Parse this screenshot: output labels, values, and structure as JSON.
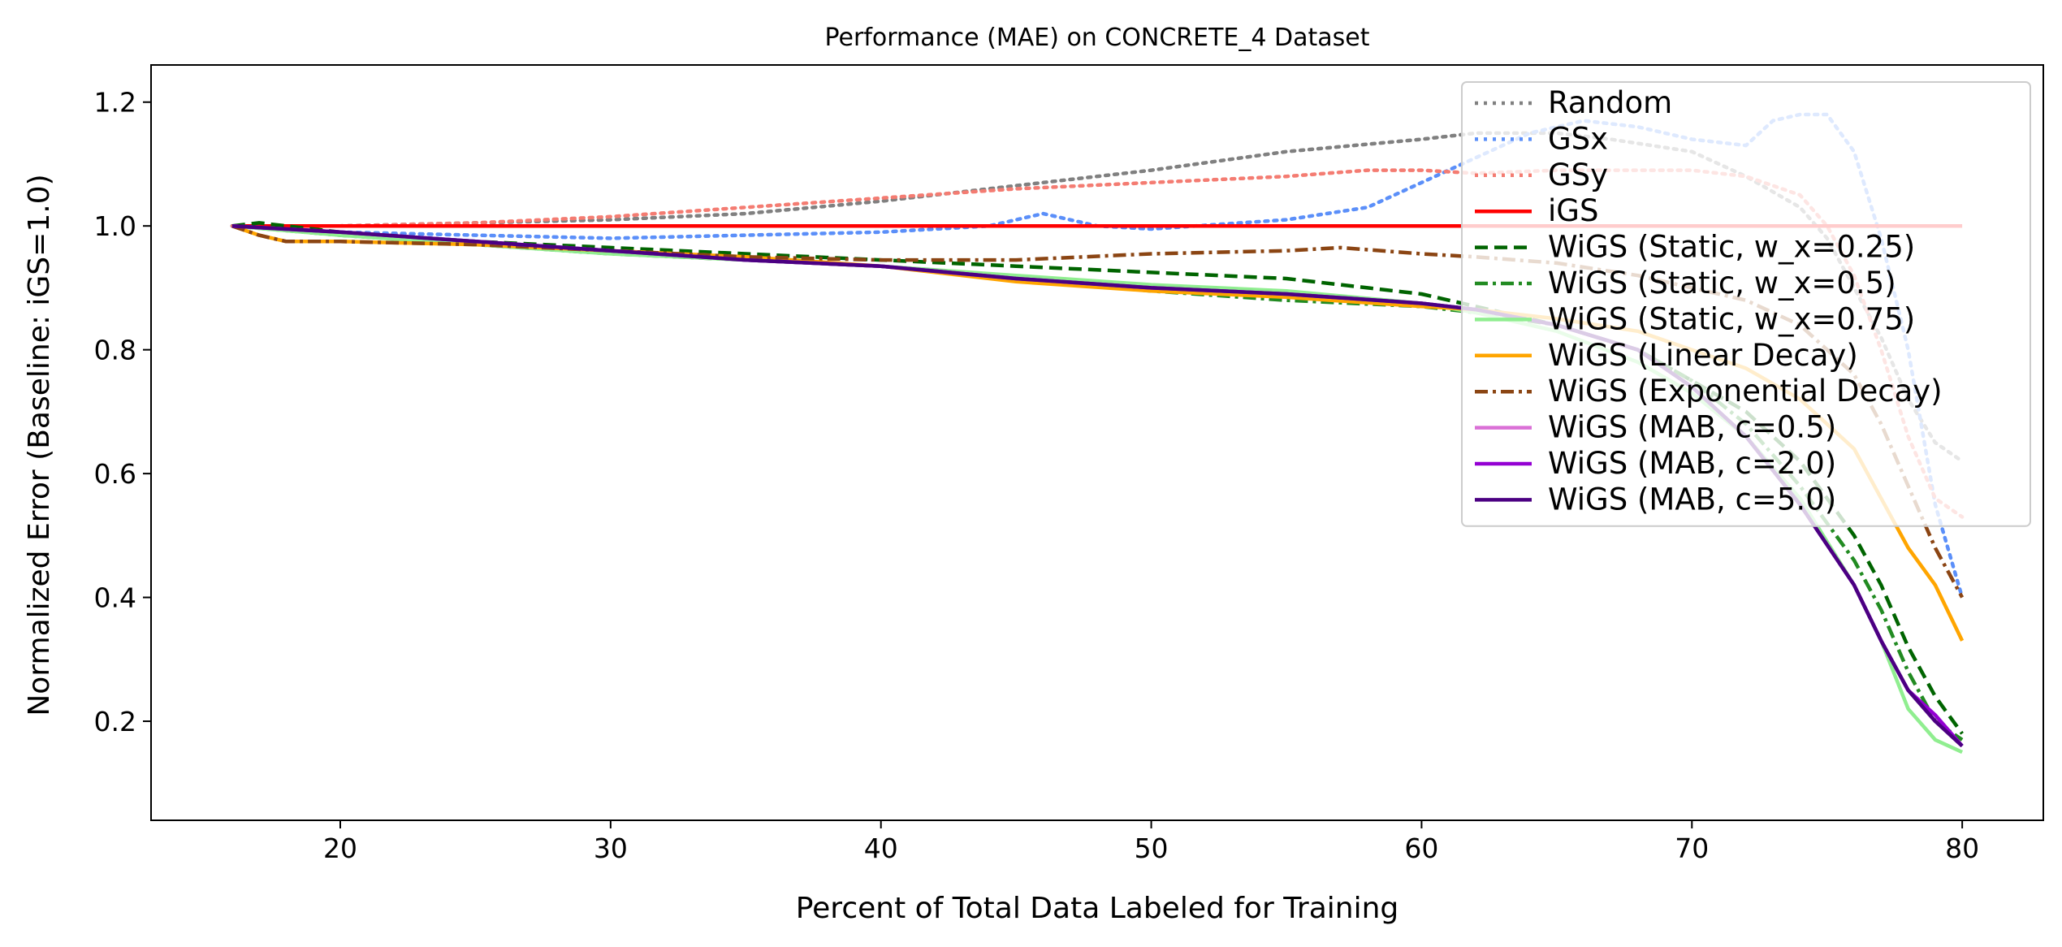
{
  "chart_data": {
    "type": "line",
    "title": "Performance (MAE) on CONCRETE_4 Dataset",
    "xlabel": "Percent of Total Data Labeled for Training",
    "ylabel": "Normalized Error (Baseline: iGS=1.0)",
    "xlim": [
      13,
      83
    ],
    "ylim": [
      0.04,
      1.26
    ],
    "xticks": [
      20,
      30,
      40,
      50,
      60,
      70,
      80
    ],
    "yticks": [
      0.2,
      0.4,
      0.6,
      0.8,
      1.0,
      1.2
    ],
    "xtick_labels": [
      "20",
      "30",
      "40",
      "50",
      "60",
      "70",
      "80"
    ],
    "ytick_labels": [
      "0.2",
      "0.4",
      "0.6",
      "0.8",
      "1.0",
      "1.2"
    ],
    "grid": false,
    "legend_position": "upper right",
    "series": [
      {
        "name": "Random",
        "color": "#808080",
        "dash": "dotted",
        "x": [
          16,
          20,
          25,
          30,
          35,
          40,
          45,
          50,
          55,
          60,
          62,
          65,
          67,
          70,
          72,
          74,
          75,
          76,
          77,
          78,
          79,
          80
        ],
        "y": [
          1.0,
          1.0,
          1.005,
          1.01,
          1.02,
          1.04,
          1.065,
          1.09,
          1.12,
          1.14,
          1.15,
          1.15,
          1.14,
          1.12,
          1.08,
          1.03,
          0.98,
          0.9,
          0.82,
          0.72,
          0.65,
          0.62
        ]
      },
      {
        "name": "GSx",
        "color": "#5b8ff9",
        "dash": "dotted",
        "x": [
          16,
          20,
          25,
          30,
          35,
          40,
          44,
          46,
          48,
          50,
          55,
          58,
          60,
          62,
          64,
          66,
          68,
          70,
          72,
          73,
          74,
          75,
          76,
          77,
          78,
          79,
          80
        ],
        "y": [
          1.0,
          0.99,
          0.985,
          0.98,
          0.985,
          0.99,
          1.0,
          1.02,
          1.0,
          0.995,
          1.01,
          1.03,
          1.07,
          1.11,
          1.15,
          1.17,
          1.16,
          1.14,
          1.13,
          1.17,
          1.18,
          1.18,
          1.12,
          0.98,
          0.8,
          0.55,
          0.4
        ]
      },
      {
        "name": "GSy",
        "color": "#f47c72",
        "dash": "dotted",
        "x": [
          16,
          20,
          25,
          30,
          35,
          40,
          45,
          50,
          55,
          58,
          60,
          62,
          65,
          68,
          70,
          72,
          74,
          75,
          76,
          77,
          78,
          79,
          80
        ],
        "y": [
          1.0,
          1.0,
          1.005,
          1.015,
          1.03,
          1.045,
          1.06,
          1.07,
          1.08,
          1.09,
          1.09,
          1.085,
          1.09,
          1.09,
          1.09,
          1.08,
          1.05,
          1.0,
          0.92,
          0.8,
          0.66,
          0.56,
          0.53
        ]
      },
      {
        "name": "iGS",
        "color": "#ff0000",
        "dash": "solid",
        "x": [
          16,
          80
        ],
        "y": [
          1.0,
          1.0
        ]
      },
      {
        "name": "WiGS (Static, w_x=0.25)",
        "color": "#006400",
        "dash": "dashed",
        "x": [
          16,
          17,
          20,
          25,
          30,
          35,
          40,
          45,
          50,
          55,
          58,
          60,
          62,
          65,
          68,
          70,
          72,
          74,
          76,
          77,
          78,
          79,
          80
        ],
        "y": [
          1.0,
          1.005,
          0.99,
          0.975,
          0.965,
          0.955,
          0.945,
          0.935,
          0.925,
          0.915,
          0.9,
          0.89,
          0.87,
          0.84,
          0.8,
          0.75,
          0.7,
          0.62,
          0.5,
          0.42,
          0.32,
          0.24,
          0.18
        ]
      },
      {
        "name": "WiGS (Static, w_x=0.5)",
        "color": "#228b22",
        "dash": "dashdot",
        "x": [
          16,
          20,
          25,
          30,
          35,
          40,
          45,
          50,
          55,
          60,
          62,
          65,
          68,
          70,
          72,
          74,
          76,
          77,
          78,
          79,
          80
        ],
        "y": [
          1.0,
          0.985,
          0.97,
          0.955,
          0.945,
          0.935,
          0.915,
          0.895,
          0.88,
          0.87,
          0.86,
          0.84,
          0.8,
          0.75,
          0.68,
          0.58,
          0.46,
          0.38,
          0.28,
          0.2,
          0.17
        ]
      },
      {
        "name": "WiGS (Static, w_x=0.75)",
        "color": "#90ee90",
        "dash": "solid",
        "x": [
          16,
          20,
          25,
          30,
          35,
          40,
          45,
          50,
          55,
          60,
          62,
          65,
          68,
          70,
          72,
          74,
          76,
          77,
          78,
          79,
          80
        ],
        "y": [
          1.0,
          0.985,
          0.97,
          0.955,
          0.945,
          0.935,
          0.92,
          0.905,
          0.895,
          0.875,
          0.86,
          0.83,
          0.78,
          0.73,
          0.66,
          0.56,
          0.42,
          0.33,
          0.22,
          0.17,
          0.15
        ]
      },
      {
        "name": "WiGS (Linear Decay)",
        "color": "#ffa500",
        "dash": "solid",
        "x": [
          16,
          17,
          18,
          20,
          25,
          30,
          35,
          40,
          45,
          50,
          55,
          60,
          62,
          65,
          68,
          70,
          72,
          74,
          76,
          77,
          78,
          79,
          80
        ],
        "y": [
          1.0,
          0.985,
          0.975,
          0.975,
          0.97,
          0.96,
          0.95,
          0.935,
          0.91,
          0.895,
          0.885,
          0.87,
          0.865,
          0.85,
          0.83,
          0.8,
          0.77,
          0.72,
          0.64,
          0.56,
          0.48,
          0.42,
          0.33
        ]
      },
      {
        "name": "WiGS (Exponential Decay)",
        "color": "#8b4513",
        "dash": "dashdot",
        "x": [
          16,
          17,
          18,
          20,
          25,
          30,
          35,
          40,
          45,
          50,
          55,
          57,
          60,
          62,
          65,
          68,
          70,
          72,
          74,
          76,
          77,
          78,
          79,
          80
        ],
        "y": [
          1.0,
          0.985,
          0.975,
          0.975,
          0.97,
          0.96,
          0.95,
          0.945,
          0.945,
          0.955,
          0.96,
          0.965,
          0.955,
          0.95,
          0.94,
          0.92,
          0.9,
          0.88,
          0.84,
          0.76,
          0.68,
          0.58,
          0.48,
          0.4
        ]
      },
      {
        "name": "WiGS (MAB, c=0.5)",
        "color": "#da70d6",
        "dash": "solid",
        "x": [
          16,
          20,
          25,
          30,
          35,
          40,
          45,
          50,
          55,
          60,
          62,
          65,
          68,
          70,
          72,
          74,
          76,
          77,
          78,
          79,
          80
        ],
        "y": [
          1.0,
          0.99,
          0.975,
          0.96,
          0.945,
          0.935,
          0.915,
          0.9,
          0.89,
          0.875,
          0.865,
          0.84,
          0.8,
          0.74,
          0.66,
          0.55,
          0.42,
          0.33,
          0.25,
          0.2,
          0.16
        ]
      },
      {
        "name": "WiGS (MAB, c=2.0)",
        "color": "#9400d3",
        "dash": "solid",
        "x": [
          16,
          20,
          25,
          30,
          35,
          40,
          45,
          50,
          55,
          60,
          62,
          65,
          68,
          70,
          72,
          74,
          76,
          77,
          78,
          79,
          80
        ],
        "y": [
          1.0,
          0.99,
          0.975,
          0.96,
          0.945,
          0.935,
          0.915,
          0.9,
          0.89,
          0.875,
          0.865,
          0.84,
          0.8,
          0.74,
          0.66,
          0.55,
          0.42,
          0.33,
          0.25,
          0.21,
          0.16
        ]
      },
      {
        "name": "WiGS (MAB, c=5.0)",
        "color": "#4b0082",
        "dash": "solid",
        "x": [
          16,
          20,
          25,
          30,
          35,
          40,
          45,
          50,
          55,
          60,
          62,
          65,
          68,
          70,
          72,
          74,
          76,
          77,
          78,
          79,
          80
        ],
        "y": [
          1.0,
          0.99,
          0.975,
          0.96,
          0.945,
          0.935,
          0.915,
          0.9,
          0.89,
          0.875,
          0.865,
          0.84,
          0.8,
          0.74,
          0.66,
          0.55,
          0.42,
          0.33,
          0.25,
          0.2,
          0.16
        ]
      }
    ]
  }
}
